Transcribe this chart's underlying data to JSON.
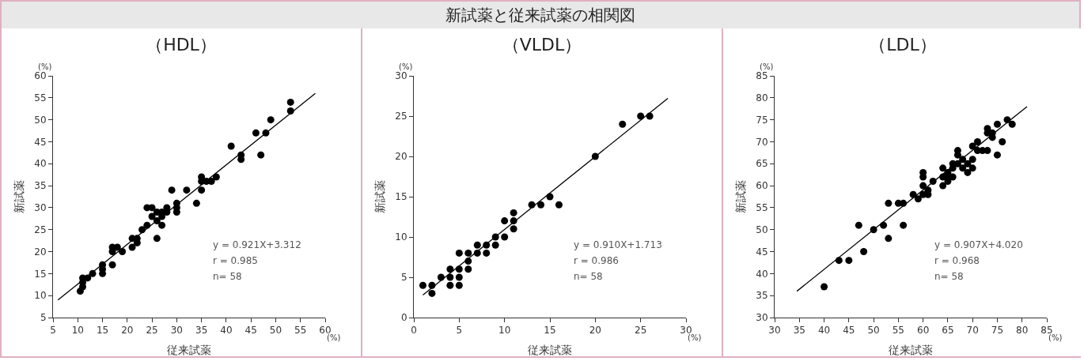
{
  "chart_data": [
    {
      "type": "other",
      "title": "新試薬と従来試薬の相関図"
    },
    {
      "type": "scatter",
      "title": "（HDL）",
      "xlabel": "従来試薬",
      "ylabel": "新試薬",
      "marker": "circle",
      "grid": false,
      "annotations": [
        "(%)",
        "(%)",
        "y = 0.921X+3.312",
        "r = 0.985",
        "n= 58"
      ],
      "xlim": [
        5,
        60
      ],
      "xticks": [
        5,
        10,
        15,
        20,
        25,
        30,
        35,
        40,
        45,
        50,
        55,
        60
      ],
      "ylim": [
        5,
        60
      ],
      "yticks": [
        5,
        10,
        15,
        20,
        25,
        30,
        35,
        40,
        45,
        50,
        55,
        60
      ],
      "series": [
        {
          "color": "#000000",
          "x": [
            10.5,
            11,
            11,
            11,
            12,
            13,
            15,
            15,
            15,
            17,
            17,
            17,
            18,
            19,
            21,
            21,
            22,
            22,
            23,
            24,
            24,
            25,
            25,
            26,
            26,
            26,
            27,
            27,
            27,
            28,
            28,
            29,
            30,
            30,
            30,
            32,
            34,
            35,
            35,
            35,
            36,
            37,
            38,
            41,
            43,
            43,
            46,
            47,
            48,
            49,
            53,
            53
          ],
          "values": [
            11,
            12,
            13,
            14,
            14,
            15,
            15,
            16,
            17,
            17,
            20,
            21,
            21,
            20,
            21,
            23,
            22,
            23,
            25,
            26,
            30,
            30,
            28,
            23,
            27,
            29,
            26,
            28,
            29,
            29,
            30,
            34,
            29,
            30,
            31,
            34,
            31,
            34,
            36,
            37,
            36,
            36,
            37,
            44,
            41,
            42,
            47,
            42,
            47,
            50,
            52,
            54
          ]
        },
        {
          "type": "line",
          "marker": "none",
          "color": "#000000",
          "x": [
            6,
            58
          ],
          "values": [
            9,
            56
          ]
        }
      ]
    },
    {
      "type": "scatter",
      "title": "（VLDL）",
      "xlabel": "従来試薬",
      "ylabel": "新試薬",
      "marker": "circle",
      "grid": false,
      "annotations": [
        "(%)",
        "(%)",
        "y = 0.910X+1.713",
        "r = 0.986",
        "n= 58"
      ],
      "xlim": [
        0,
        30
      ],
      "xticks": [
        0,
        5,
        10,
        15,
        20,
        25,
        30
      ],
      "ylim": [
        0,
        30
      ],
      "yticks": [
        0,
        5,
        10,
        15,
        20,
        25,
        30
      ],
      "series": [
        {
          "color": "#000000",
          "x": [
            1,
            2,
            2,
            3,
            4,
            4,
            4,
            5,
            5,
            5,
            5,
            6,
            6,
            6,
            7,
            7,
            8,
            8,
            9,
            9,
            10,
            10,
            11,
            11,
            11,
            13,
            14,
            15,
            16,
            20,
            23,
            25,
            26
          ],
          "values": [
            4,
            3,
            4,
            5,
            4,
            5,
            6,
            4,
            5,
            6,
            8,
            6,
            7,
            8,
            8,
            9,
            8,
            9,
            9,
            10,
            10,
            12,
            11,
            12,
            13,
            14,
            14,
            15,
            14,
            20,
            24,
            25,
            25
          ]
        },
        {
          "type": "line",
          "marker": "none",
          "color": "#000000",
          "x": [
            1,
            28
          ],
          "values": [
            2.8,
            27.2
          ]
        }
      ]
    },
    {
      "type": "scatter",
      "title": "（LDL）",
      "xlabel": "従来試薬",
      "ylabel": "新試薬",
      "marker": "circle",
      "grid": false,
      "annotations": [
        "(%)",
        "(%)",
        "y = 0.907X+4.020",
        "r = 0.968",
        "n= 58"
      ],
      "xlim": [
        30,
        85
      ],
      "xticks": [
        30,
        35,
        40,
        45,
        50,
        55,
        60,
        65,
        70,
        75,
        80,
        85
      ],
      "ylim": [
        30,
        85
      ],
      "yticks": [
        30,
        35,
        40,
        45,
        50,
        55,
        60,
        65,
        70,
        75,
        80,
        85
      ],
      "series": [
        {
          "color": "#000000",
          "x": [
            40,
            43,
            45,
            47,
            48,
            50,
            52,
            53,
            53,
            55,
            56,
            56,
            58,
            59,
            60,
            60,
            60,
            60,
            61,
            61,
            62,
            64,
            64,
            64,
            65,
            65,
            65,
            66,
            66,
            66,
            67,
            67,
            67,
            68,
            68,
            69,
            69,
            70,
            70,
            70,
            71,
            71,
            72,
            73,
            73,
            73,
            74,
            74,
            75,
            75,
            76,
            77,
            78
          ],
          "values": [
            37,
            43,
            43,
            51,
            45,
            50,
            51,
            48,
            56,
            56,
            51,
            56,
            58,
            57,
            58,
            60,
            62,
            63,
            58,
            59,
            61,
            60,
            62,
            64,
            61,
            62,
            63,
            62,
            64,
            65,
            65,
            67,
            68,
            64,
            66,
            63,
            65,
            64,
            66,
            69,
            68,
            70,
            68,
            68,
            72,
            73,
            71,
            72,
            67,
            74,
            70,
            75,
            74
          ]
        },
        {
          "type": "line",
          "marker": "none",
          "color": "#000000",
          "x": [
            34.5,
            81
          ],
          "values": [
            36,
            78
          ]
        }
      ]
    }
  ]
}
